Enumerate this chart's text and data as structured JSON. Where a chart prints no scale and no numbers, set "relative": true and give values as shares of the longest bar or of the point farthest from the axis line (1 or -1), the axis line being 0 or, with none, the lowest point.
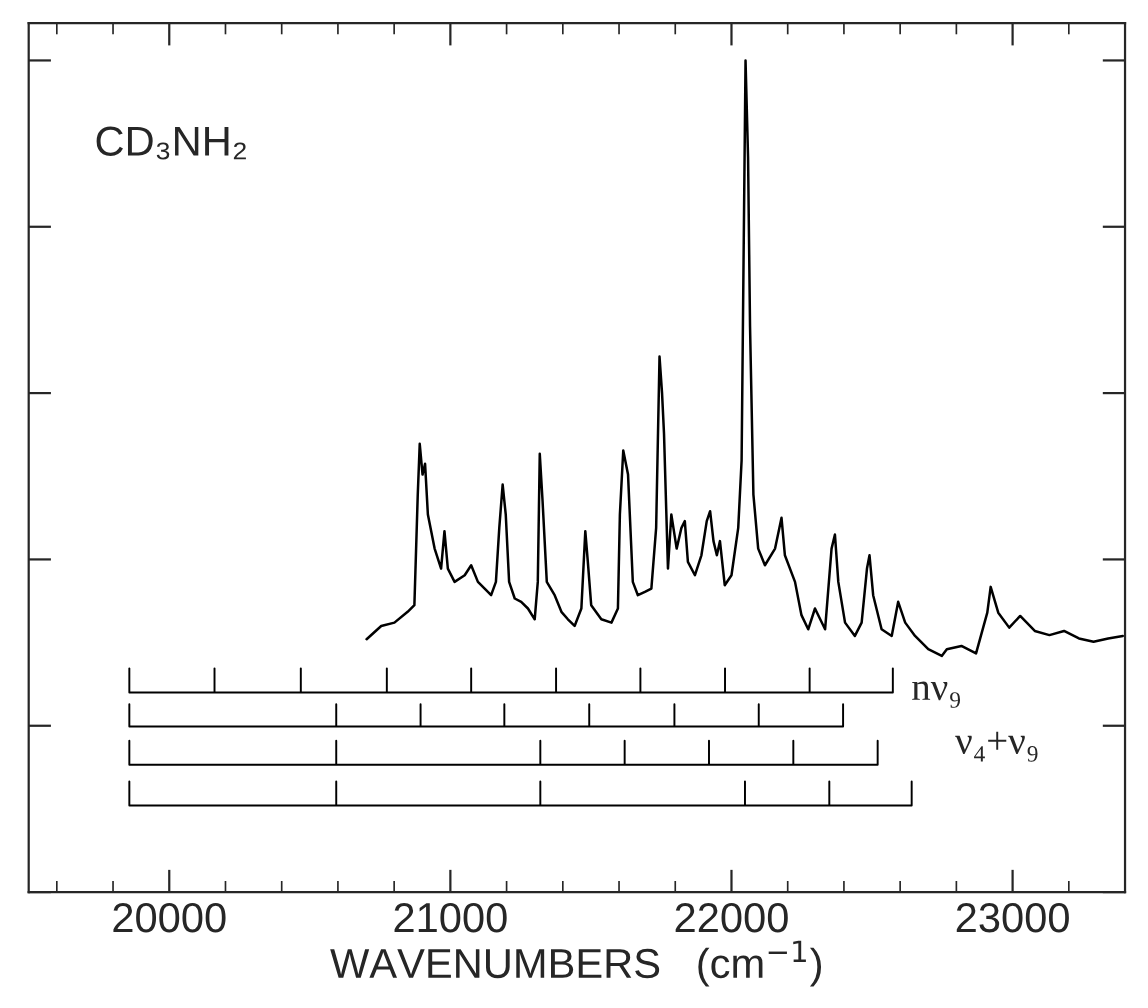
{
  "chart_data": {
    "type": "line",
    "relative": true,
    "xlabel": "WAVENUMBERS   (cm$^{−1}$)",
    "annotations": [
      "CD₃NH₂",
      "nν₉",
      "ν₄+ν₉"
    ],
    "xlim": [
      19500,
      23400
    ],
    "xticks": [
      {
        "value": 19600,
        "label": null
      },
      {
        "value": 19800,
        "label": null
      },
      20000,
      {
        "value": 20200,
        "label": null
      },
      {
        "value": 20400,
        "label": null
      },
      {
        "value": 20600,
        "label": null
      },
      {
        "value": 20800,
        "label": null
      },
      21000,
      {
        "value": 21200,
        "label": null
      },
      {
        "value": 21400,
        "label": null
      },
      {
        "value": 21600,
        "label": null
      },
      {
        "value": 21800,
        "label": null
      },
      22000,
      {
        "value": 22200,
        "label": null
      },
      {
        "value": 22400,
        "label": null
      },
      {
        "value": 22600,
        "label": null
      },
      {
        "value": 22800,
        "label": null
      },
      23000,
      {
        "value": 23200,
        "label": null
      },
      {
        "value": 23400,
        "label": null
      }
    ],
    "marker": "none",
    "line_style": "solid",
    "series": [
      {
        "color": "#000000",
        "x": [
          20702,
          20754,
          20801,
          20848,
          20872,
          20884,
          20891,
          20901,
          20910,
          20920,
          20944,
          20967,
          20979,
          20991,
          21015,
          21051,
          21074,
          21098,
          21122,
          21145,
          21162,
          21174,
          21186,
          21197,
          21209,
          21229,
          21252,
          21276,
          21300,
          21311,
          21318,
          21328,
          21343,
          21371,
          21395,
          21418,
          21442,
          21466,
          21480,
          21489,
          21501,
          21537,
          21573,
          21596,
          21603,
          21615,
          21632,
          21649,
          21667,
          21692,
          21715,
          21732,
          21744,
          21753,
          21760,
          21774,
          21786,
          21805,
          21822,
          21834,
          21845,
          21870,
          21893,
          21912,
          21924,
          21936,
          21948,
          21959,
          21976,
          22000,
          22024,
          22036,
          22043,
          22050,
          22059,
          22066,
          22078,
          22095,
          22119,
          22155,
          22178,
          22190,
          22226,
          22249,
          22273,
          22297,
          22333,
          22356,
          22368,
          22380,
          22404,
          22439,
          22463,
          22482,
          22491,
          22504,
          22534,
          22570,
          22593,
          22618,
          22653,
          22700,
          22748,
          22766,
          22818,
          22870,
          22910,
          22922,
          22949,
          22988,
          23027,
          23079,
          23131,
          23183,
          23236,
          23288,
          23340,
          23392
        ],
        "values": [
          0.304,
          0.32,
          0.324,
          0.337,
          0.345,
          0.478,
          0.539,
          0.502,
          0.515,
          0.454,
          0.413,
          0.389,
          0.434,
          0.389,
          0.373,
          0.381,
          0.393,
          0.373,
          0.365,
          0.357,
          0.373,
          0.438,
          0.49,
          0.454,
          0.373,
          0.353,
          0.349,
          0.341,
          0.328,
          0.373,
          0.527,
          0.47,
          0.373,
          0.357,
          0.337,
          0.328,
          0.32,
          0.341,
          0.434,
          0.397,
          0.345,
          0.328,
          0.324,
          0.341,
          0.454,
          0.531,
          0.502,
          0.373,
          0.357,
          0.361,
          0.365,
          0.438,
          0.644,
          0.6,
          0.551,
          0.389,
          0.454,
          0.413,
          0.438,
          0.446,
          0.397,
          0.381,
          0.405,
          0.446,
          0.458,
          0.422,
          0.405,
          0.422,
          0.369,
          0.381,
          0.438,
          0.519,
          0.761,
          1.0,
          0.883,
          0.68,
          0.478,
          0.413,
          0.393,
          0.413,
          0.45,
          0.405,
          0.373,
          0.333,
          0.316,
          0.341,
          0.316,
          0.413,
          0.43,
          0.373,
          0.324,
          0.308,
          0.324,
          0.389,
          0.405,
          0.357,
          0.316,
          0.308,
          0.349,
          0.324,
          0.308,
          0.292,
          0.284,
          0.292,
          0.296,
          0.287,
          0.336,
          0.367,
          0.336,
          0.318,
          0.332,
          0.314,
          0.309,
          0.314,
          0.305,
          0.301,
          0.305,
          0.308
        ]
      },
      {
        "color": "#000000",
        "x": [
          19858,
          19858,
          20161,
          20161,
          20161,
          20468,
          20468,
          20468,
          20774,
          20774,
          20774,
          21074,
          21074,
          21074,
          21376,
          21376,
          21376,
          21676,
          21676,
          21676,
          21977,
          21977,
          21977,
          22278,
          22278,
          22278,
          22574,
          22574
        ],
        "values": [
          0.269,
          0.24,
          0.24,
          0.269,
          0.24,
          0.24,
          0.269,
          0.24,
          0.24,
          0.269,
          0.24,
          0.24,
          0.269,
          0.24,
          0.24,
          0.269,
          0.24,
          0.24,
          0.269,
          0.24,
          0.24,
          0.269,
          0.24,
          0.24,
          0.269,
          0.24,
          0.24,
          0.269
        ]
      },
      {
        "color": "#000000",
        "x": [
          19858,
          19858,
          20594,
          20594,
          20594,
          20894,
          20894,
          20894,
          21192,
          21192,
          21192,
          21494,
          21494,
          21494,
          21797,
          21797,
          21797,
          22097,
          22097,
          22097,
          22397,
          22397
        ],
        "values": [
          0.226,
          0.199,
          0.199,
          0.226,
          0.199,
          0.199,
          0.226,
          0.199,
          0.199,
          0.226,
          0.199,
          0.199,
          0.226,
          0.199,
          0.199,
          0.226,
          0.199,
          0.199,
          0.226,
          0.199,
          0.199,
          0.226
        ]
      },
      {
        "color": "#000000",
        "x": [
          19858,
          19858,
          20594,
          20594,
          20594,
          21320,
          21320,
          21320,
          21620,
          21620,
          21620,
          21920,
          21920,
          21920,
          22220,
          22220,
          22220,
          22520,
          22520
        ],
        "values": [
          0.182,
          0.153,
          0.153,
          0.182,
          0.153,
          0.153,
          0.182,
          0.153,
          0.153,
          0.182,
          0.153,
          0.153,
          0.182,
          0.153,
          0.153,
          0.182,
          0.153,
          0.153,
          0.182
        ]
      },
      {
        "color": "#000000",
        "x": [
          19858,
          19858,
          20594,
          20594,
          20594,
          21320,
          21320,
          21320,
          22048,
          22048,
          22048,
          22348,
          22348,
          22348,
          22641,
          22641
        ],
        "values": [
          0.133,
          0.104,
          0.104,
          0.133,
          0.104,
          0.104,
          0.133,
          0.104,
          0.104,
          0.133,
          0.104,
          0.104,
          0.133,
          0.104,
          0.104,
          0.133
        ]
      }
    ]
  }
}
